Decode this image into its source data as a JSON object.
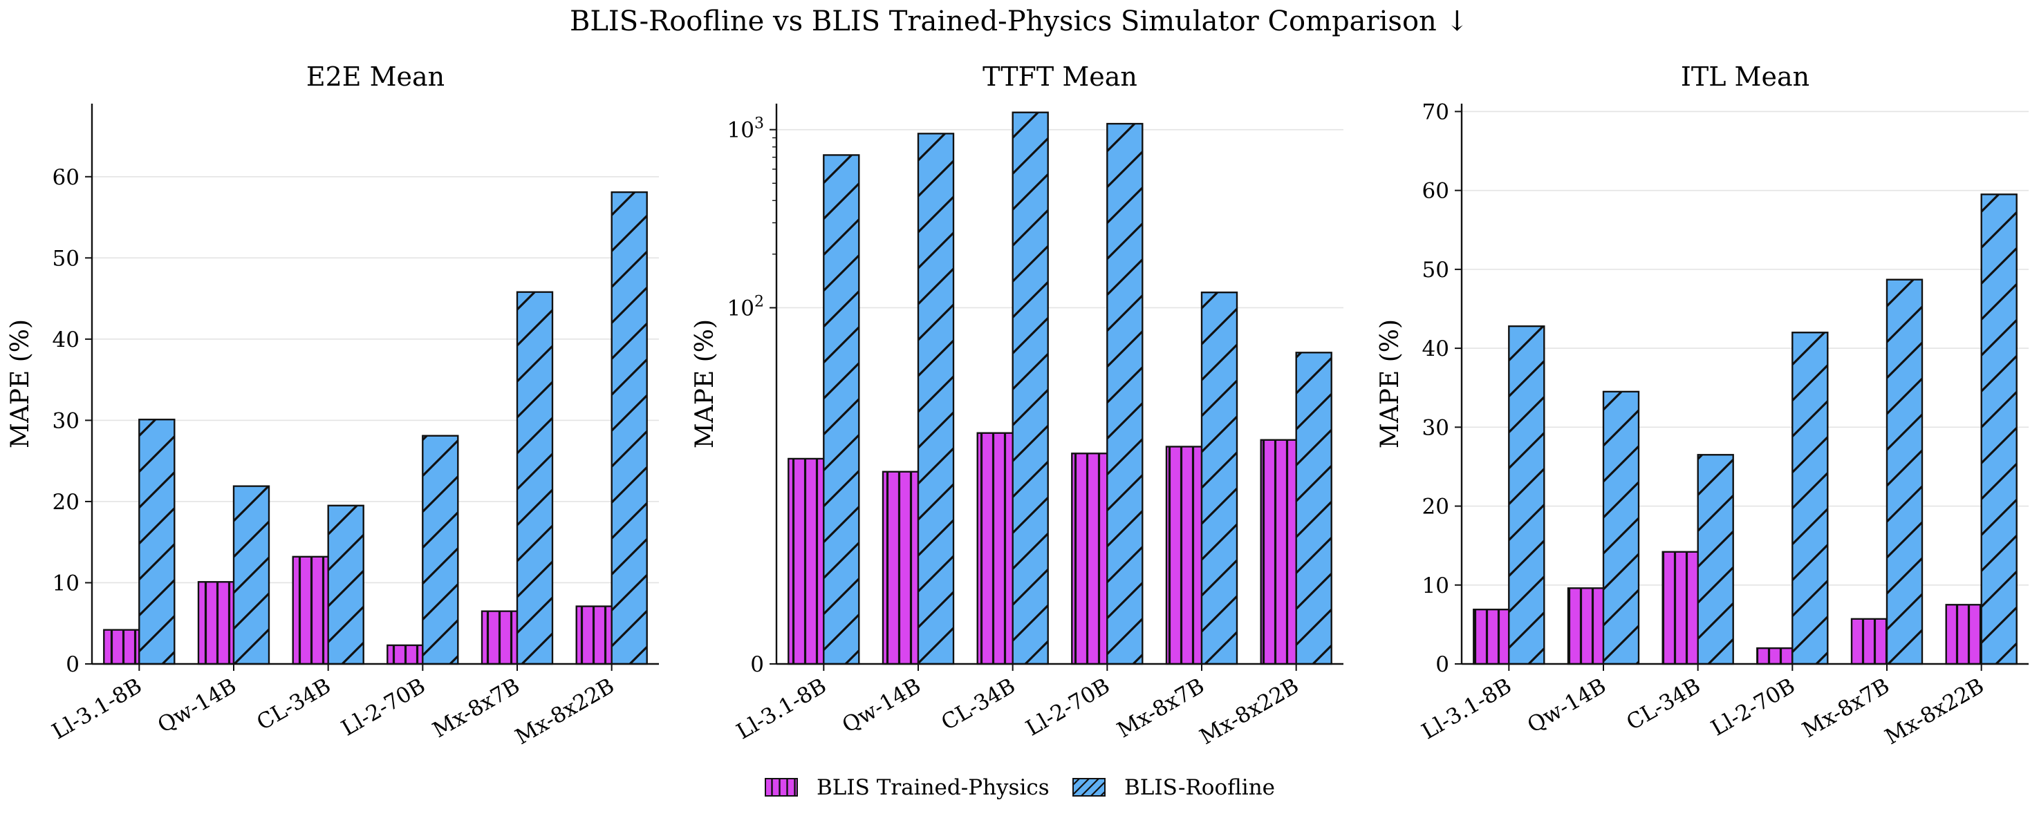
{
  "figure": {
    "title": "BLIS-Roofline vs BLIS Trained-Physics Simulator Comparison ↓"
  },
  "legend": {
    "placement": "bottom-center",
    "items": [
      {
        "label": "BLIS Trained-Physics",
        "color": "#d946ef",
        "hatch": "vertical"
      },
      {
        "label": "BLIS-Roofline",
        "color": "#60b0f4",
        "hatch": "diagonal"
      }
    ]
  },
  "chart_data": [
    {
      "type": "bar",
      "title": "E2E Mean",
      "xlabel": "",
      "ylabel": "MAPE (%)",
      "yscale": "linear",
      "ylim": [
        0,
        69
      ],
      "yticks": [
        0,
        10,
        20,
        30,
        40,
        50,
        60
      ],
      "ytick_labels": [
        "0",
        "10",
        "20",
        "30",
        "40",
        "50",
        "60"
      ],
      "grid": true,
      "categories": [
        "Ll-3.1-8B",
        "Qw-14B",
        "CL-34B",
        "Ll-2-70B",
        "Mx-8x7B",
        "Mx-8x22B"
      ],
      "series": [
        {
          "name": "BLIS Trained-Physics",
          "values": [
            4.2,
            10.1,
            13.2,
            2.3,
            6.5,
            7.1
          ]
        },
        {
          "name": "BLIS-Roofline",
          "values": [
            30.1,
            21.9,
            19.5,
            28.1,
            45.8,
            58.1
          ]
        }
      ]
    },
    {
      "type": "bar",
      "title": "TTFT Mean",
      "xlabel": "",
      "ylabel": "MAPE (%)",
      "yscale": "symlog",
      "linthresh": 10,
      "ylim": [
        0,
        1400
      ],
      "yticks": [
        0,
        100,
        1000
      ],
      "ytick_labels": [
        "0",
        "10^2",
        "10^3"
      ],
      "grid": true,
      "categories": [
        "Ll-3.1-8B",
        "Qw-14B",
        "CL-34B",
        "Ll-2-70B",
        "Mx-8x7B",
        "Mx-8x22B"
      ],
      "series": [
        {
          "name": "BLIS Trained-Physics",
          "values": [
            14.2,
            12.0,
            19.8,
            15.2,
            16.6,
            18.1
          ]
        },
        {
          "name": "BLIS-Roofline",
          "values": [
            720,
            950,
            1250,
            1080,
            122,
            56
          ]
        }
      ]
    },
    {
      "type": "bar",
      "title": "ITL Mean",
      "xlabel": "",
      "ylabel": "MAPE (%)",
      "yscale": "linear",
      "ylim": [
        0,
        71
      ],
      "yticks": [
        0,
        10,
        20,
        30,
        40,
        50,
        60,
        70
      ],
      "ytick_labels": [
        "0",
        "10",
        "20",
        "30",
        "40",
        "50",
        "60",
        "70"
      ],
      "grid": true,
      "categories": [
        "Ll-3.1-8B",
        "Qw-14B",
        "CL-34B",
        "Ll-2-70B",
        "Mx-8x7B",
        "Mx-8x22B"
      ],
      "series": [
        {
          "name": "BLIS Trained-Physics",
          "values": [
            6.9,
            9.6,
            14.2,
            2.0,
            5.7,
            7.5
          ]
        },
        {
          "name": "BLIS-Roofline",
          "values": [
            42.8,
            34.5,
            26.5,
            42.0,
            48.7,
            59.5
          ]
        }
      ]
    }
  ]
}
